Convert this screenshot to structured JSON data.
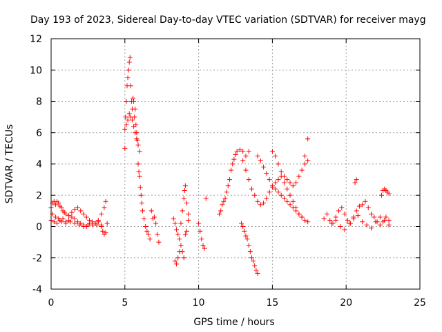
{
  "chart_data": {
    "type": "scatter",
    "title": "Day 193 of 2023, Sidereal Day-to-day VTEC variation (SDTVAR) for receiver mayg",
    "xlabel": "GPS time / hours",
    "ylabel": "SDTVAR / TECUs",
    "xlim": [
      0,
      25
    ],
    "ylim": [
      -4,
      12
    ],
    "xticks": [
      0,
      5,
      10,
      15,
      20,
      25
    ],
    "yticks": [
      -4,
      -2,
      0,
      2,
      4,
      6,
      8,
      10,
      12
    ],
    "xtick_labels": [
      "0",
      "5",
      "10",
      "15",
      "20",
      "25"
    ],
    "ytick_labels": [
      "-4",
      "-2",
      "0",
      "2",
      "4",
      "6",
      "8",
      "10",
      "12"
    ],
    "grid": true,
    "marker": "+",
    "color": "#ff0000",
    "series": [
      {
        "name": "SDTVAR",
        "x": [
          0.0,
          0.1,
          0.2,
          0.3,
          0.4,
          0.5,
          0.6,
          0.7,
          0.8,
          0.9,
          1.0,
          1.2,
          1.4,
          1.6,
          1.8,
          2.0,
          2.2,
          2.4,
          2.6,
          2.8,
          3.0,
          3.2,
          3.4,
          3.6,
          3.7,
          0.0,
          0.2,
          0.4,
          0.6,
          0.8,
          1.0,
          1.2,
          1.4,
          1.6,
          1.8,
          2.0,
          2.2,
          2.4,
          2.6,
          2.8,
          3.0,
          3.2,
          3.4,
          0.1,
          0.3,
          0.5,
          0.7,
          1.0,
          1.3,
          1.6,
          1.9,
          2.2,
          2.5,
          2.8,
          3.1,
          3.4,
          3.5,
          3.6,
          3.7,
          3.8,
          5.0,
          5.05,
          5.1,
          5.15,
          5.2,
          5.25,
          5.3,
          5.35,
          5.4,
          5.45,
          5.5,
          5.55,
          5.6,
          5.65,
          5.7,
          5.75,
          5.8,
          5.85,
          5.9,
          5.95,
          6.0,
          6.05,
          6.1,
          6.15,
          6.2,
          6.3,
          6.4,
          6.5,
          6.6,
          6.7,
          6.8,
          6.9,
          7.0,
          7.1,
          7.2,
          7.3,
          5.0,
          5.1,
          5.2,
          5.3,
          5.4,
          5.5,
          5.6,
          5.7,
          5.8,
          5.9,
          6.0,
          8.4,
          8.5,
          8.6,
          8.7,
          8.8,
          8.9,
          9.0,
          9.05,
          9.1,
          9.2,
          9.3,
          8.3,
          8.4,
          8.5,
          8.6,
          8.7,
          8.8,
          8.9,
          9.0,
          9.1,
          9.2,
          9.3,
          10.0,
          10.1,
          10.2,
          10.3,
          10.4,
          10.5,
          11.4,
          11.5,
          11.6,
          11.7,
          11.8,
          11.9,
          12.0,
          12.1,
          12.2,
          12.3,
          12.4,
          12.5,
          12.6,
          12.8,
          13.0,
          13.2,
          13.4,
          12.9,
          13.0,
          13.1,
          13.2,
          13.3,
          13.4,
          13.5,
          13.6,
          13.7,
          13.8,
          13.9,
          14.0,
          13.0,
          13.2,
          13.4,
          13.6,
          13.8,
          14.0,
          14.2,
          14.4,
          14.6,
          14.8,
          15.0,
          15.2,
          15.4,
          15.6,
          15.8,
          16.0,
          16.2,
          16.4,
          16.6,
          16.8,
          17.0,
          17.2,
          17.4,
          14.0,
          14.2,
          14.4,
          14.6,
          14.8,
          15.0,
          15.2,
          15.4,
          15.6,
          15.8,
          16.0,
          16.2,
          16.4,
          16.6,
          16.8,
          17.0,
          17.2,
          17.4,
          15.0,
          15.2,
          15.4,
          15.6,
          15.8,
          16.0,
          16.2,
          16.4,
          16.6,
          16.8,
          17.0,
          17.2,
          17.4,
          18.5,
          18.7,
          18.9,
          19.1,
          19.3,
          19.5,
          19.7,
          19.9,
          20.1,
          20.3,
          20.5,
          20.7,
          20.9,
          21.1,
          21.3,
          21.5,
          21.7,
          21.9,
          22.1,
          22.3,
          22.5,
          22.7,
          22.9,
          19.0,
          19.3,
          19.6,
          19.9,
          20.2,
          20.5,
          20.8,
          21.1,
          21.4,
          21.7,
          22.0,
          22.3,
          22.6,
          22.9,
          20.6,
          20.7,
          22.4,
          22.5,
          22.6,
          22.7,
          22.8,
          22.9
        ],
        "y": [
          1.2,
          1.5,
          1.6,
          1.4,
          1.6,
          1.5,
          1.3,
          1.2,
          1.0,
          0.9,
          0.8,
          0.7,
          0.9,
          1.1,
          1.2,
          1.0,
          0.8,
          0.6,
          0.4,
          0.3,
          0.2,
          0.4,
          0.8,
          1.2,
          1.6,
          0.4,
          0.3,
          0.2,
          0.4,
          0.5,
          0.3,
          0.4,
          0.6,
          0.5,
          0.3,
          0.2,
          0.1,
          0.0,
          0.2,
          0.1,
          0.2,
          0.3,
          0.1,
          0.8,
          0.6,
          0.5,
          0.3,
          0.2,
          0.3,
          0.2,
          0.1,
          0.0,
          0.1,
          0.2,
          0.1,
          0.0,
          -0.3,
          -0.5,
          -0.4,
          0.2,
          5.0,
          7.0,
          8.0,
          9.0,
          9.5,
          10.0,
          10.5,
          10.8,
          9.0,
          8.0,
          7.5,
          8.2,
          8.0,
          7.0,
          7.5,
          6.5,
          6.0,
          5.5,
          4.0,
          3.5,
          3.2,
          2.5,
          2.0,
          1.5,
          1.0,
          0.5,
          0.0,
          -0.3,
          -0.5,
          -0.8,
          1.0,
          0.5,
          0.6,
          0.2,
          -0.5,
          -1.0,
          6.2,
          6.5,
          6.8,
          7.2,
          7.0,
          6.8,
          6.4,
          6.0,
          5.6,
          5.2,
          4.8,
          -2.2,
          -2.4,
          -2.0,
          -1.6,
          0.2,
          1.0,
          1.8,
          2.3,
          2.6,
          1.5,
          0.8,
          0.5,
          0.2,
          -0.2,
          -0.5,
          -0.8,
          -1.2,
          -1.6,
          -2.0,
          -0.5,
          -0.3,
          0.4,
          0.2,
          -0.3,
          -0.8,
          -1.2,
          -1.4,
          1.8,
          0.8,
          1.0,
          1.4,
          1.6,
          1.8,
          2.2,
          2.6,
          3.0,
          3.6,
          4.0,
          4.3,
          4.6,
          4.8,
          4.9,
          4.8,
          4.5,
          4.8,
          0.2,
          0.0,
          -0.3,
          -0.6,
          -0.8,
          -1.2,
          -1.6,
          -2.0,
          -2.2,
          -2.5,
          -2.8,
          -3.0,
          4.2,
          3.6,
          3.0,
          2.4,
          2.0,
          1.6,
          1.4,
          1.5,
          1.8,
          2.2,
          2.5,
          2.8,
          3.0,
          3.2,
          2.8,
          2.4,
          2.0,
          1.6,
          1.2,
          0.8,
          0.6,
          4.5,
          5.6,
          4.5,
          4.2,
          3.8,
          3.4,
          3.0,
          2.6,
          2.4,
          2.2,
          2.0,
          1.8,
          1.6,
          1.4,
          1.2,
          1.0,
          0.8,
          0.6,
          0.4,
          0.3,
          4.8,
          4.5,
          4.0,
          3.5,
          3.2,
          3.0,
          2.8,
          2.6,
          2.8,
          3.2,
          3.6,
          4.0,
          4.2,
          0.5,
          0.8,
          0.4,
          0.2,
          0.6,
          1.0,
          1.2,
          0.8,
          0.4,
          0.2,
          0.6,
          1.0,
          1.3,
          1.4,
          1.6,
          1.2,
          0.8,
          0.6,
          0.3,
          0.1,
          0.3,
          0.6,
          0.4,
          0.2,
          0.4,
          0.0,
          -0.2,
          0.2,
          0.5,
          0.7,
          0.3,
          0.1,
          -0.1,
          0.3,
          0.6,
          0.4,
          0.1,
          2.8,
          3.0,
          2.0,
          2.3,
          2.4,
          2.3,
          2.2,
          2.1
        ]
      }
    ]
  }
}
